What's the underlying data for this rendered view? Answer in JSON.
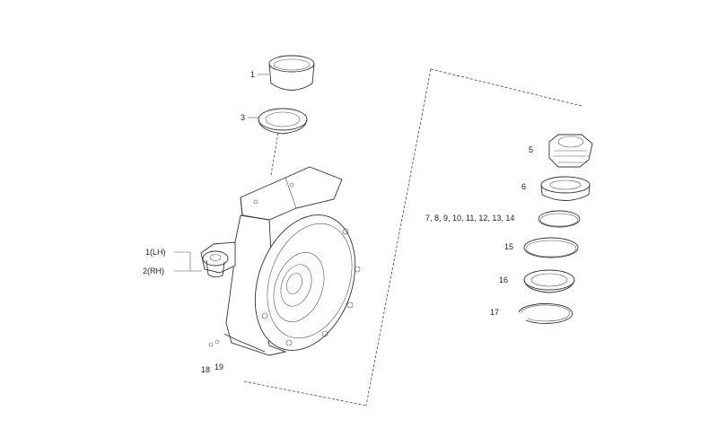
{
  "diagram": {
    "callouts": {
      "part_1": "1",
      "part_3": "3",
      "part_5": "5",
      "part_6": "6",
      "parts_7_14": "7, 8, 9, 10, 11, 12, 13, 14",
      "part_15": "15",
      "part_16": "16",
      "part_17": "17",
      "part_lh": "1(LH)",
      "part_rh": "2(RH)",
      "part_18": "18",
      "part_19": "19"
    }
  }
}
